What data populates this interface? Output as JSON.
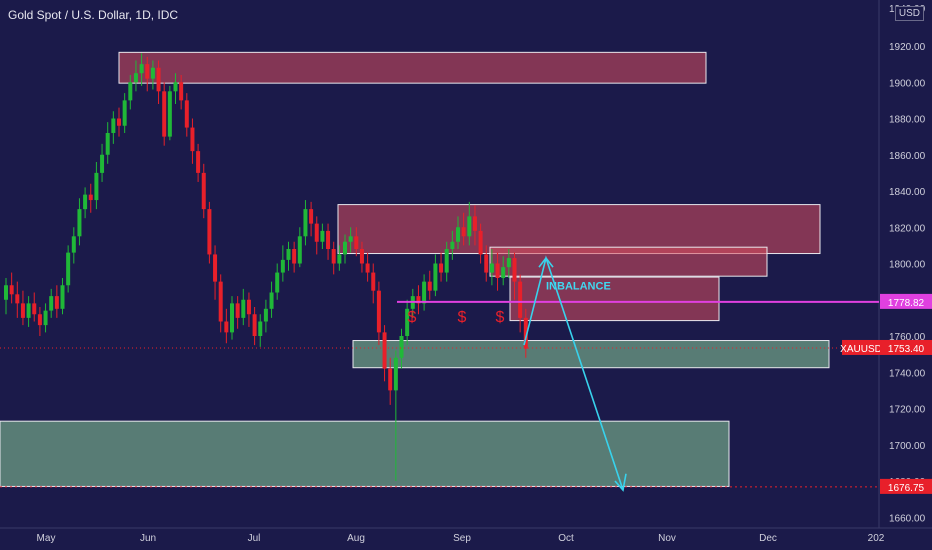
{
  "header": {
    "title": "Gold Spot / U.S. Dollar, 1D, IDC",
    "currency": "USD",
    "top_tick_partial": "1940.00"
  },
  "chart_data": {
    "type": "candlestick",
    "symbol": "XAUUSD",
    "yaxis": {
      "ticks": [
        "1920.00",
        "1900.00",
        "1880.00",
        "1860.00",
        "1840.00",
        "1820.00",
        "1800.00",
        "1780.00",
        "1760.00",
        "1740.00",
        "1720.00",
        "1700.00",
        "1680.00",
        "1660.00"
      ],
      "ylim": [
        1660,
        1940
      ]
    },
    "xaxis": {
      "ticks": [
        "May",
        "Jun",
        "Jul",
        "Aug",
        "Sep",
        "Oct",
        "Nov",
        "Dec",
        "202"
      ]
    },
    "price_labels": [
      {
        "label": "1778.82",
        "value": 1778.82,
        "color": "#e040e0"
      },
      {
        "label": "XAUUSD",
        "value": 1753.4,
        "color": "#e8202a"
      },
      {
        "label": "1753.40",
        "value": 1753.4,
        "color": "#e8202a"
      },
      {
        "label": "1676.75",
        "value": 1676.75,
        "color": "#e8202a"
      }
    ],
    "annotations": {
      "imbalance_text": "INBALANCE",
      "dollar_marks": [
        "$",
        "$",
        "$"
      ]
    },
    "zones": [
      {
        "name": "zone-1900",
        "type": "supply",
        "from": 1899.5,
        "to": 1916.5
      },
      {
        "name": "zone-1820",
        "type": "supply",
        "from": 1805.5,
        "to": 1832.5
      },
      {
        "name": "zone-1800",
        "type": "supply",
        "from": 1793,
        "to": 1809
      },
      {
        "name": "zone-1780",
        "type": "supply",
        "from": 1768.5,
        "to": 1792.5
      },
      {
        "name": "zone-1750",
        "type": "demand",
        "from": 1742.5,
        "to": 1757.5
      },
      {
        "name": "zone-1700",
        "type": "demand",
        "from": 1677,
        "to": 1713
      }
    ],
    "colors": {
      "bull": "#20b838",
      "bear": "#e8202a",
      "supply": "#d84f5e",
      "demand": "#6d9e84",
      "arrow": "#38d2ec",
      "level": "#e040e0"
    }
  }
}
